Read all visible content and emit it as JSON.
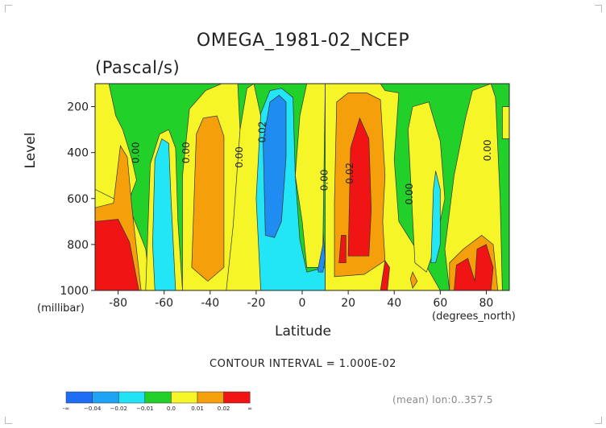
{
  "chart_data": {
    "type": "heatmap",
    "title": "OMEGA_1981-02_NCEP",
    "units": "(Pascal/s)",
    "xlabel": "Latitude",
    "xunits": "(degrees_north)",
    "ylabel": "Level",
    "yunits": "(millibar)",
    "xlim": [
      -90,
      90
    ],
    "ylim": [
      1000,
      100
    ],
    "x_ticks": [
      "-80",
      "-60",
      "-40",
      "-20",
      "0",
      "20",
      "40",
      "60",
      "80"
    ],
    "y_ticks": [
      "200",
      "400",
      "600",
      "800",
      "1000"
    ],
    "contour_labels": [
      "0.00",
      "0.00",
      "0.00",
      "0.02",
      "0.00",
      "0.02",
      "0.00",
      "0.00"
    ],
    "contour_interval_text": "CONTOUR INTERVAL = 1.000E-02",
    "footer_text": "(mean) lon:0..357.5",
    "colorbar": {
      "labels": [
        "-∞",
        "−0.04",
        "−0.02",
        "−0.01",
        "0.0",
        "0.01",
        "0.02",
        "∞"
      ],
      "colors": [
        "#1e6ef5",
        "#1ea3f5",
        "#22e3f5",
        "#22d02a",
        "#f5f528",
        "#f5a00a",
        "#f01414"
      ]
    },
    "colors": {
      "neg_strong": "#1e8cf0",
      "neg_light": "#22e6f5",
      "zero": "#22d02a",
      "pos_light": "#f5f528",
      "pos_mid": "#f5a00a",
      "pos_strong": "#f01414"
    }
  }
}
